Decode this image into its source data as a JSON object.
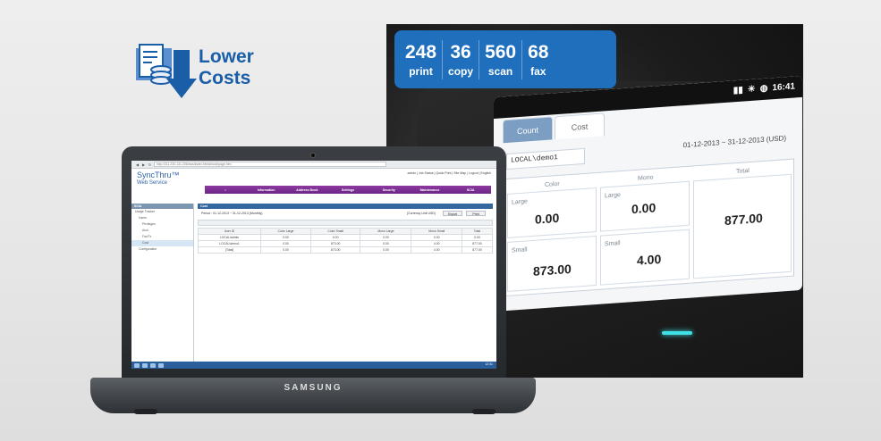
{
  "promo": {
    "line1": "Lower",
    "line2": "Costs",
    "icon": "document-coins-down-arrow-icon",
    "color": "#1a5ea8"
  },
  "stats": [
    {
      "value": "248",
      "label": "print"
    },
    {
      "value": "36",
      "label": "copy"
    },
    {
      "value": "560",
      "label": "scan"
    },
    {
      "value": "68",
      "label": "fax"
    }
  ],
  "device_screen": {
    "time": "16:41",
    "tabs": [
      "Count",
      "Cost"
    ],
    "active_tab": "Cost",
    "user": "LOCAL\\demo1",
    "date_range": "01-12-2013 ~ 31-12-2013 (USD)",
    "headers": {
      "color": "Color",
      "mono": "Mono",
      "total": "Total",
      "large": "Large",
      "small": "Small"
    },
    "values": {
      "color_large": "0.00",
      "color_small": "873.00",
      "mono_large": "0.00",
      "mono_small": "4.00",
      "total": "877.00"
    }
  },
  "laptop": {
    "brand": "SAMSUNG",
    "browser": {
      "url": "http://211.230.131.206/sws/index.html#/cost/page.htm"
    },
    "web": {
      "title": "SyncThru™",
      "subtitle": "Web Service",
      "header_links": "admin | Job Status | Quick Print | Site Map | Logout | English",
      "menu": [
        "Information",
        "Address Book",
        "Settings",
        "Security",
        "Maintenance",
        "SCIA"
      ],
      "sidebar_header": "SCIA",
      "sidebar_items": [
        "Usage Tracker",
        "Users",
        "Privileges",
        "Acct.",
        "Fax/Tx",
        "Cost",
        "Configuration"
      ],
      "selected_sidebar": "Cost",
      "panel_title": "Cost",
      "period": "Period : 01-12-2013 ~ 31-12-2013 (Monthly)",
      "currency": "(Currency Unit USD)",
      "export_label": "Export",
      "print_label": "Print",
      "table": {
        "columns": [
          "User ID",
          "Color Large",
          "Color Small",
          "Mono Large",
          "Mono Small",
          "Total"
        ],
        "rows": [
          [
            "LOCAL\\admin",
            "0.00",
            "0.00",
            "0.00",
            "0.00",
            "0.00"
          ],
          [
            "LOCAL\\demo1",
            "0.00",
            "873.00",
            "0.00",
            "4.00",
            "877.00"
          ],
          [
            "[Total]",
            "0.00",
            "873.00",
            "0.00",
            "4.00",
            "877.00"
          ]
        ]
      },
      "clock": "12:31"
    }
  }
}
